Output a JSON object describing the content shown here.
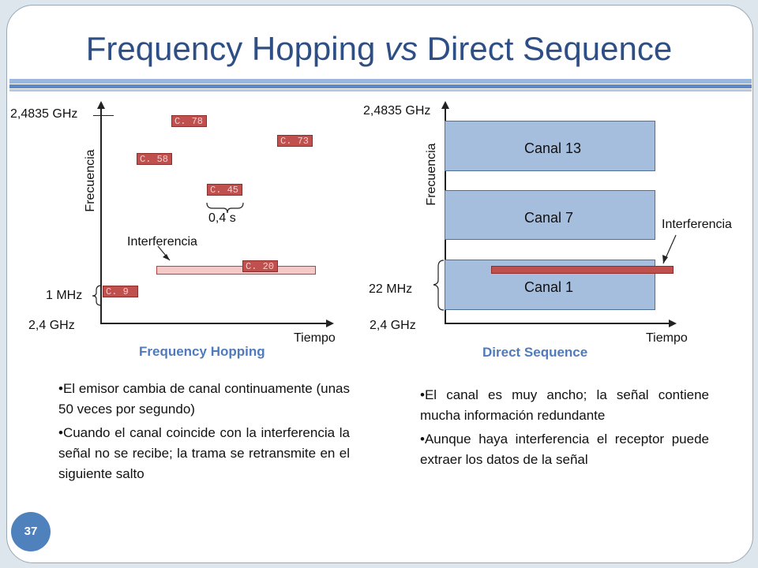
{
  "title": {
    "main_a": "Frequency Hopping ",
    "vs": "vs",
    "main_b": " Direct Sequence"
  },
  "page_number": "37",
  "fh": {
    "top_freq": "2,4835 GHz",
    "bottom_freq": "2,4 GHz",
    "bandwidth": "1 MHz",
    "y_axis": "Frecuencia",
    "x_axis": "Tiempo",
    "duration": "0,4 s",
    "interference": "Interferencia",
    "caption": "Frequency Hopping",
    "hops": [
      "C. 78",
      "C. 73",
      "C. 58",
      "C. 45",
      "C. 20",
      "C. 9"
    ],
    "bullets": [
      "•El emisor cambia de canal continuamente (unas 50 veces por segundo)",
      "•Cuando el canal coincide con la interferencia la señal no se recibe; la trama se retransmite en el siguiente salto"
    ]
  },
  "ds": {
    "top_freq": "2,4835 GHz",
    "bottom_freq": "2,4 GHz",
    "bandwidth": "22 MHz",
    "y_axis": "Frecuencia",
    "x_axis": "Tiempo",
    "interference": "Interferencia",
    "caption": "Direct Sequence",
    "channels": [
      "Canal 13",
      "Canal 7",
      "Canal 1"
    ],
    "bullets": [
      "•El canal es muy ancho; la señal contiene mucha información redundante",
      "•Aunque haya interferencia el receptor puede extraer los datos de la señal"
    ]
  },
  "colors": {
    "title": "#2e4f86",
    "hop": "#c0504d",
    "band": "#a6bede",
    "caption": "#4f7bbd"
  }
}
